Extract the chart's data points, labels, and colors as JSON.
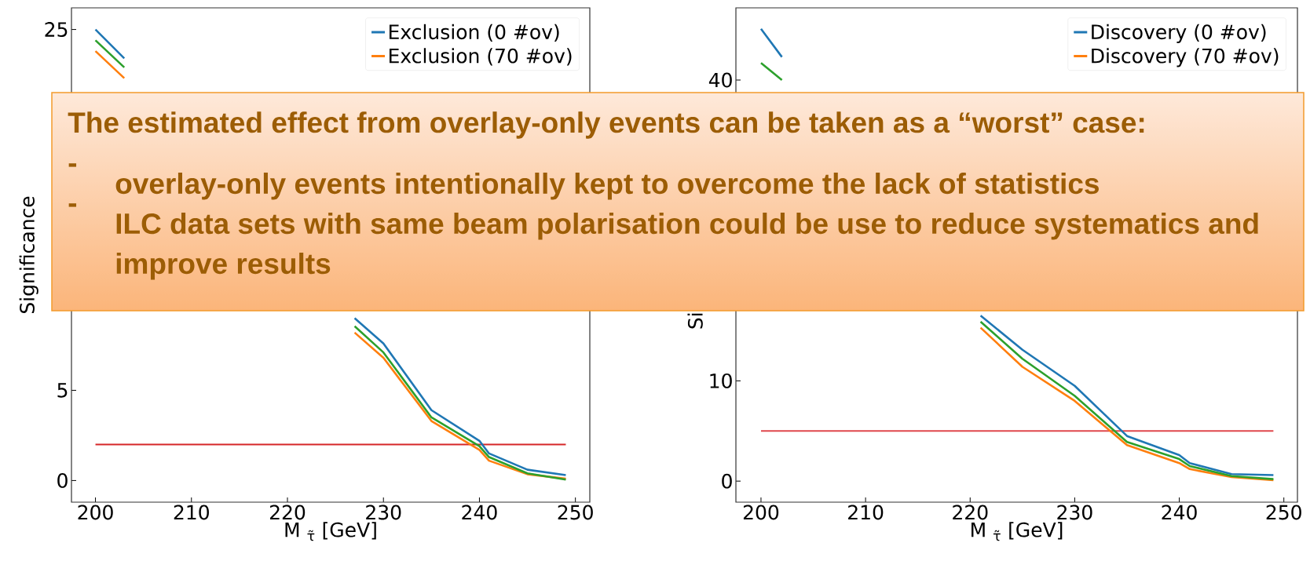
{
  "chart_data": [
    {
      "type": "line",
      "xlabel": "M $_{τ̃}$ [GeV]",
      "ylabel": "Significance",
      "x": [
        200,
        203,
        210,
        215,
        220,
        227,
        230,
        235,
        240,
        241,
        245,
        249
      ],
      "series": [
        {
          "name": "Exclusion (0 #ov)",
          "color": "#1f77b4",
          "values": [
            25.0,
            23.4,
            null,
            null,
            null,
            9.0,
            7.6,
            3.9,
            2.2,
            1.5,
            0.6,
            0.3
          ]
        },
        {
          "name": "Exclusion (70 #ov)",
          "color": "#ff7f0e",
          "values": [
            23.8,
            22.3,
            null,
            null,
            null,
            8.2,
            6.8,
            3.3,
            1.7,
            1.1,
            0.35,
            0.1
          ]
        },
        {
          "color": "#2ca02c",
          "values": [
            24.4,
            22.9,
            null,
            null,
            null,
            8.55,
            7.1,
            3.5,
            1.9,
            1.3,
            0.4,
            0.05
          ]
        }
      ],
      "xlim": [
        197.5,
        251.5
      ],
      "ylim": [
        -1.2,
        26.2
      ],
      "xticks": [
        200,
        210,
        220,
        230,
        240,
        250
      ],
      "yticks": [
        0,
        5,
        {
          "value": 10,
          "label": null
        },
        {
          "value": 15,
          "label": null
        },
        {
          "value": 20,
          "label": null
        },
        25
      ],
      "ref_lines": [
        {
          "axis": "y",
          "value": 2,
          "color": "#d62728"
        }
      ],
      "legend": "top right"
    },
    {
      "type": "line",
      "xlabel": "M $_{τ̃}$ [GeV]",
      "ylabel": "Si",
      "x": [
        200,
        202,
        210,
        215,
        221,
        225,
        230,
        235,
        240,
        241,
        245,
        249
      ],
      "series": [
        {
          "name": "Discovery (0 #ov)",
          "color": "#1f77b4",
          "values": [
            45.1,
            42.3,
            null,
            null,
            16.5,
            13.1,
            9.5,
            4.5,
            2.6,
            1.8,
            0.7,
            0.6
          ]
        },
        {
          "name": "Discovery (70 #ov)",
          "color": "#ff7f0e",
          "values": [
            null,
            null,
            null,
            null,
            15.3,
            11.4,
            8.0,
            3.6,
            1.8,
            1.2,
            0.4,
            0.1
          ]
        },
        {
          "color": "#2ca02c",
          "values": [
            41.7,
            40.0,
            null,
            null,
            15.9,
            12.2,
            8.5,
            3.9,
            2.2,
            1.5,
            0.5,
            0.2
          ]
        }
      ],
      "xlim": [
        197.6,
        251.3
      ],
      "ylim": [
        -2.1,
        47.2
      ],
      "xticks": [
        200,
        210,
        220,
        230,
        240,
        250
      ],
      "yticks": [
        0,
        10,
        {
          "value": 20,
          "label": null
        },
        {
          "value": 30,
          "label": null
        },
        40
      ],
      "ref_lines": [
        {
          "axis": "y",
          "value": 5,
          "color": "#e0474c"
        }
      ],
      "legend": "top right"
    },
    {
      "type": "other",
      "annotations": [
        "The estimated effect from overlay-only events can be taken as a “worst” case:",
        "-",
        "overlay-only events intentionally kept to overcome the lack of statistics",
        "-",
        "ILC data sets with same beam polarisation could be use to reduce systematics and improve results"
      ]
    }
  ]
}
